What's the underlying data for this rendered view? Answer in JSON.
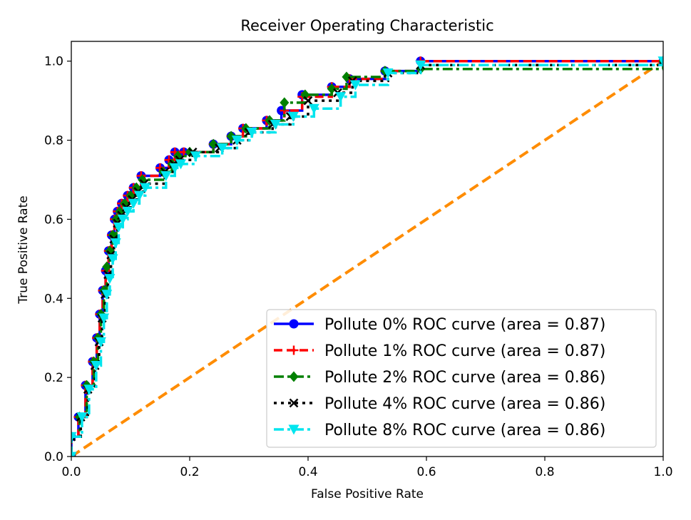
{
  "chart_data": {
    "type": "line",
    "title": "Receiver Operating Characteristic",
    "xlabel": "False Positive Rate",
    "ylabel": "True Positive Rate",
    "xlim": [
      0.0,
      1.0
    ],
    "ylim": [
      0.0,
      1.05
    ],
    "x_ticks": [
      "0.0",
      "0.2",
      "0.4",
      "0.6",
      "0.8",
      "1.0"
    ],
    "y_ticks": [
      "0.0",
      "0.2",
      "0.4",
      "0.6",
      "0.8",
      "1.0"
    ],
    "grid": false,
    "legend_position": "lower-right",
    "diagonal": {
      "x": [
        0,
        1
      ],
      "y": [
        0,
        1
      ],
      "color": "#ff8c00",
      "style": "dashed"
    },
    "series": [
      {
        "name": "Pollute 0% ROC curve (area = 0.87)",
        "color": "#0000ff",
        "dash": "solid",
        "marker": "circle",
        "x": [
          0.0,
          0.0,
          0.012,
          0.024,
          0.036,
          0.043,
          0.048,
          0.053,
          0.058,
          0.063,
          0.068,
          0.073,
          0.078,
          0.085,
          0.095,
          0.105,
          0.118,
          0.15,
          0.165,
          0.175,
          0.19,
          0.24,
          0.27,
          0.29,
          0.33,
          0.355,
          0.39,
          0.44,
          0.47,
          0.53,
          0.59,
          1.0
        ],
        "y": [
          0.0,
          0.05,
          0.1,
          0.18,
          0.24,
          0.3,
          0.36,
          0.42,
          0.47,
          0.52,
          0.56,
          0.6,
          0.62,
          0.64,
          0.66,
          0.68,
          0.71,
          0.73,
          0.75,
          0.77,
          0.77,
          0.79,
          0.81,
          0.83,
          0.85,
          0.875,
          0.915,
          0.935,
          0.955,
          0.975,
          1.0,
          1.0
        ]
      },
      {
        "name": "Pollute 1% ROC curve (area = 0.87)",
        "color": "#ff0000",
        "dash": "dashed",
        "marker": "plus",
        "x": [
          0.0,
          0.0,
          0.012,
          0.024,
          0.036,
          0.043,
          0.048,
          0.053,
          0.058,
          0.063,
          0.068,
          0.073,
          0.078,
          0.085,
          0.095,
          0.105,
          0.118,
          0.15,
          0.165,
          0.175,
          0.19,
          0.24,
          0.27,
          0.29,
          0.33,
          0.36,
          0.39,
          0.44,
          0.47,
          0.53,
          0.59,
          1.0
        ],
        "y": [
          0.0,
          0.05,
          0.1,
          0.18,
          0.24,
          0.3,
          0.36,
          0.42,
          0.47,
          0.52,
          0.56,
          0.6,
          0.62,
          0.64,
          0.66,
          0.68,
          0.71,
          0.73,
          0.75,
          0.77,
          0.77,
          0.79,
          0.81,
          0.83,
          0.85,
          0.875,
          0.91,
          0.935,
          0.955,
          0.975,
          1.0,
          1.0
        ]
      },
      {
        "name": "Pollute 2% ROC curve (area = 0.86)",
        "color": "#008000",
        "dash": "dashdot",
        "marker": "diamond",
        "x": [
          0.0,
          0.0,
          0.014,
          0.026,
          0.038,
          0.045,
          0.05,
          0.055,
          0.06,
          0.065,
          0.07,
          0.076,
          0.082,
          0.09,
          0.1,
          0.11,
          0.12,
          0.155,
          0.17,
          0.18,
          0.2,
          0.24,
          0.27,
          0.295,
          0.335,
          0.36,
          0.395,
          0.44,
          0.465,
          0.53,
          0.59,
          1.0
        ],
        "y": [
          0.0,
          0.05,
          0.1,
          0.18,
          0.24,
          0.3,
          0.36,
          0.42,
          0.48,
          0.52,
          0.56,
          0.6,
          0.62,
          0.64,
          0.66,
          0.68,
          0.7,
          0.72,
          0.74,
          0.76,
          0.77,
          0.79,
          0.81,
          0.83,
          0.85,
          0.895,
          0.915,
          0.93,
          0.96,
          0.975,
          0.98,
          1.0
        ]
      },
      {
        "name": "Pollute 4% ROC curve (area = 0.86)",
        "color": "#000000",
        "dash": "dotted",
        "marker": "x",
        "x": [
          0.0,
          0.0,
          0.016,
          0.028,
          0.04,
          0.047,
          0.052,
          0.057,
          0.062,
          0.067,
          0.072,
          0.078,
          0.085,
          0.093,
          0.103,
          0.113,
          0.123,
          0.158,
          0.173,
          0.183,
          0.205,
          0.25,
          0.28,
          0.3,
          0.34,
          0.37,
          0.4,
          0.45,
          0.475,
          0.535,
          0.59,
          1.0
        ],
        "y": [
          0.0,
          0.05,
          0.1,
          0.17,
          0.23,
          0.29,
          0.35,
          0.41,
          0.46,
          0.51,
          0.55,
          0.59,
          0.61,
          0.63,
          0.65,
          0.67,
          0.69,
          0.72,
          0.74,
          0.75,
          0.77,
          0.78,
          0.8,
          0.82,
          0.84,
          0.86,
          0.9,
          0.92,
          0.95,
          0.97,
          0.99,
          1.0
        ]
      },
      {
        "name": "Pollute 8% ROC curve (area = 0.86)",
        "color": "#00e5ee",
        "dash": "dashdot",
        "marker": "triangle-down",
        "x": [
          0.0,
          0.0,
          0.018,
          0.03,
          0.042,
          0.05,
          0.055,
          0.06,
          0.065,
          0.07,
          0.075,
          0.08,
          0.087,
          0.095,
          0.105,
          0.115,
          0.125,
          0.16,
          0.175,
          0.185,
          0.21,
          0.255,
          0.28,
          0.305,
          0.345,
          0.375,
          0.41,
          0.455,
          0.48,
          0.535,
          0.59,
          1.0
        ],
        "y": [
          0.0,
          0.05,
          0.1,
          0.17,
          0.23,
          0.29,
          0.35,
          0.41,
          0.45,
          0.5,
          0.54,
          0.58,
          0.6,
          0.62,
          0.64,
          0.66,
          0.68,
          0.71,
          0.73,
          0.74,
          0.76,
          0.78,
          0.8,
          0.82,
          0.84,
          0.86,
          0.88,
          0.91,
          0.94,
          0.97,
          0.99,
          1.0
        ]
      }
    ]
  }
}
